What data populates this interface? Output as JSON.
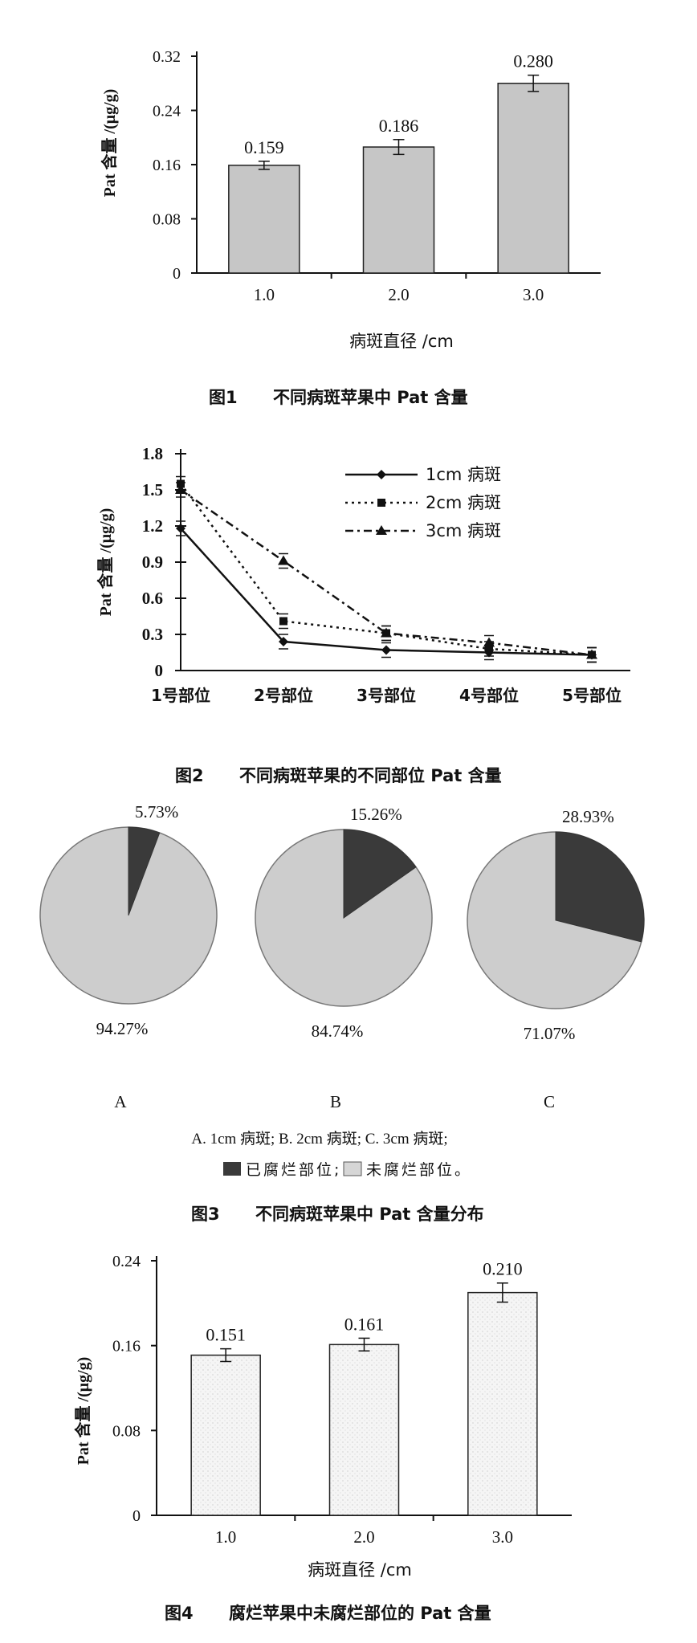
{
  "chart_data": [
    {
      "type": "bar",
      "title": "图1　不同病斑苹果中 Pat 含量",
      "caption_num": "图1",
      "caption_text": "不同病斑苹果中 Pat 含量",
      "ylabel": "Pat 含量 /(μg/g)",
      "xlabel": "病斑直径 /cm",
      "categories": [
        "1.0",
        "2.0",
        "3.0"
      ],
      "values": [
        0.159,
        0.186,
        0.28
      ],
      "value_labels": [
        "0.159",
        "0.186",
        "0.280"
      ],
      "errors": [
        0.006,
        0.011,
        0.012
      ],
      "ylim": [
        0,
        0.32
      ],
      "yticks": [
        "0",
        "0.08",
        "0.16",
        "0.24",
        "0.32"
      ],
      "bar_color": "#c9c9c9"
    },
    {
      "type": "line",
      "title": "图2　不同病斑苹果的不同部位 Pat 含量",
      "caption_num": "图2",
      "caption_text": "不同病斑苹果的不同部位 Pat 含量",
      "ylabel": "Pat 含量 /(μg/g)",
      "categories": [
        "1号部位",
        "2号部位",
        "3号部位",
        "4号部位",
        "5号部位"
      ],
      "ylim": [
        0,
        1.8
      ],
      "yticks": [
        "0",
        "0.3",
        "0.6",
        "0.9",
        "1.2",
        "1.5",
        "1.8"
      ],
      "legend_position": "top-right",
      "series": [
        {
          "name": "1cm 病斑",
          "values": [
            1.18,
            0.24,
            0.17,
            0.15,
            0.13
          ],
          "marker": "diamond",
          "dash": "solid"
        },
        {
          "name": "2cm 病斑",
          "values": [
            1.55,
            0.41,
            0.31,
            0.18,
            0.13
          ],
          "marker": "square",
          "dash": "dot"
        },
        {
          "name": "3cm 病斑",
          "values": [
            1.5,
            0.91,
            0.31,
            0.23,
            0.13
          ],
          "marker": "triangle",
          "dash": "dashdot"
        }
      ]
    },
    {
      "type": "pie",
      "title": "图3　不同病斑苹果中 Pat 含量分布",
      "caption_num": "图3",
      "caption_text": "不同病斑苹果中 Pat 含量分布",
      "pies": [
        {
          "label": "A",
          "rotten": 5.73,
          "unrotten": 94.27,
          "rotten_label": "5.73%",
          "unrotten_label": "94.27%"
        },
        {
          "label": "B",
          "rotten": 15.26,
          "unrotten": 84.74,
          "rotten_label": "15.26%",
          "unrotten_label": "84.74%"
        },
        {
          "label": "C",
          "rotten": 28.93,
          "unrotten": 71.07,
          "rotten_label": "28.93%",
          "unrotten_label": "71.07%"
        }
      ],
      "note_line1": "A. 1cm 病斑; B. 2cm 病斑; C. 3cm 病斑;",
      "legend_rotten": "已腐烂部位;",
      "legend_unrotten": "未腐烂部位。",
      "rotten_color": "#3a3a3a",
      "unrotten_color": "#cdcdcd"
    },
    {
      "type": "bar",
      "title": "图4　腐烂苹果中未腐烂部位的 Pat 含量",
      "caption_num": "图4",
      "caption_text": "腐烂苹果中未腐烂部位的 Pat 含量",
      "ylabel": "Pat 含量 /(μg/g)",
      "xlabel": "病斑直径 /cm",
      "categories": [
        "1.0",
        "2.0",
        "3.0"
      ],
      "values": [
        0.151,
        0.161,
        0.21
      ],
      "value_labels": [
        "0.151",
        "0.161",
        "0.210"
      ],
      "errors": [
        0.006,
        0.006,
        0.009
      ],
      "ylim": [
        0,
        0.24
      ],
      "yticks": [
        "0",
        "0.08",
        "0.16",
        "0.24"
      ],
      "bar_color": "#f4f4f4"
    }
  ]
}
